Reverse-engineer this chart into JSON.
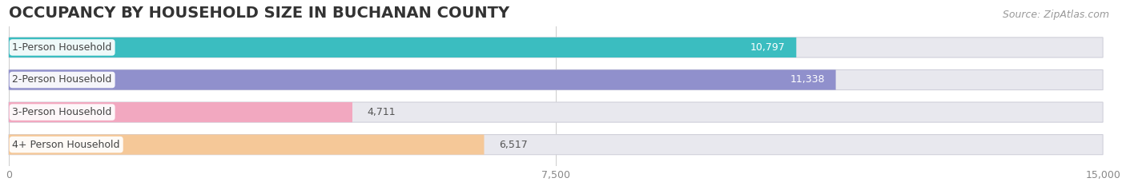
{
  "title": "OCCUPANCY BY HOUSEHOLD SIZE IN BUCHANAN COUNTY",
  "source": "Source: ZipAtlas.com",
  "categories": [
    "1-Person Household",
    "2-Person Household",
    "3-Person Household",
    "4+ Person Household"
  ],
  "values": [
    10797,
    11338,
    4711,
    6517
  ],
  "bar_colors": [
    "#3bbdc0",
    "#9090cc",
    "#f2a8c0",
    "#f5c898"
  ],
  "bar_label_colors": [
    "white",
    "white",
    "#555555",
    "#555555"
  ],
  "xlim": [
    0,
    15000
  ],
  "xticks": [
    0,
    7500,
    15000
  ],
  "xticklabels": [
    "0",
    "7,500",
    "15,000"
  ],
  "background_color": "#ffffff",
  "bar_bg_color": "#e8e8ee",
  "title_fontsize": 14,
  "source_fontsize": 9,
  "label_fontsize": 9,
  "value_fontsize": 9,
  "tick_fontsize": 9,
  "bar_height": 0.62
}
